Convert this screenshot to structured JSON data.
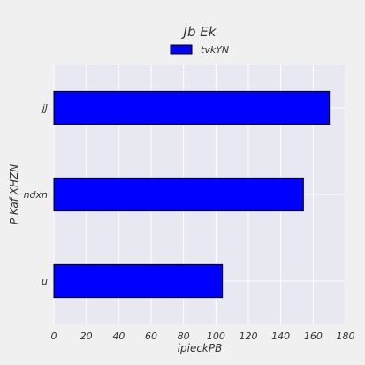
{
  "chart_data": {
    "type": "bar",
    "orientation": "horizontal",
    "title": "Jb Ek",
    "xlabel": "ipieckPB",
    "ylabel": "P  Kaf XHZN",
    "categories": [
      "jJ",
      "ndxn",
      "u"
    ],
    "series": [
      {
        "name": "tvkYN",
        "values": [
          170,
          154,
          104
        ],
        "color": "#0000ff"
      }
    ],
    "xlim": [
      0,
      180
    ],
    "xticks": [
      0,
      20,
      40,
      60,
      80,
      100,
      120,
      140,
      160,
      180
    ],
    "grid": true,
    "legend_position": "top-center",
    "colors": {
      "bar_fill": "#0000ff",
      "bar_edge": "#000000",
      "plot_background": "#e8e8f2",
      "grid": "#ffffff"
    }
  }
}
